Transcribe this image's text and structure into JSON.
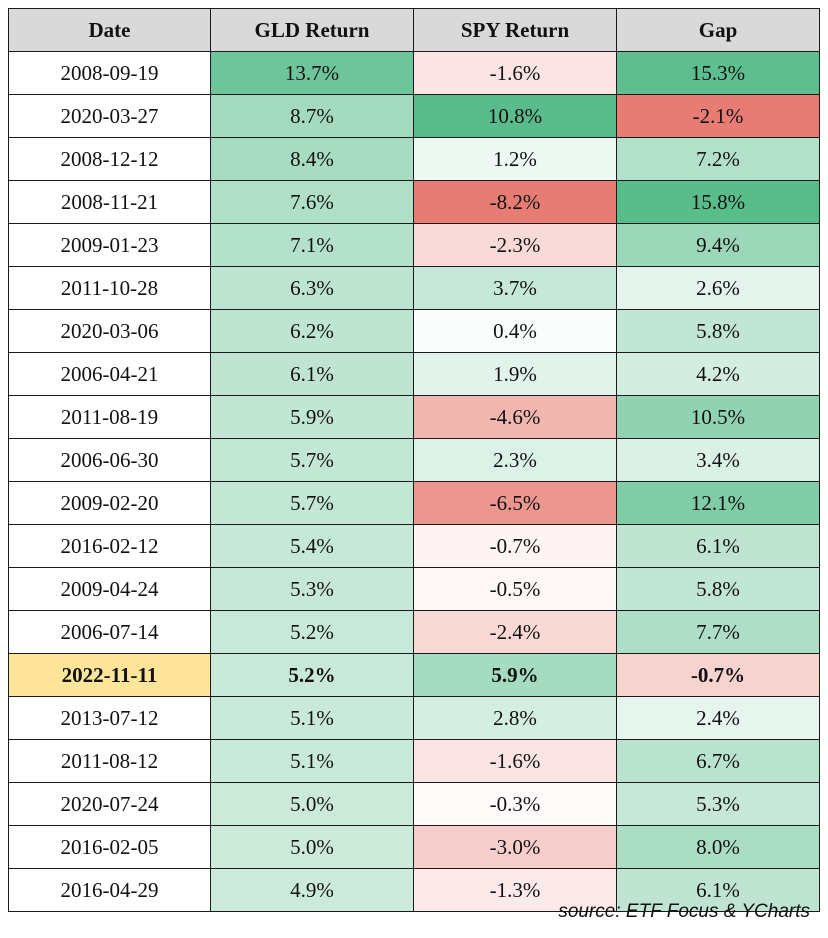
{
  "chart_data": {
    "type": "table",
    "columns": [
      "Date",
      "GLD Return",
      "SPY Return",
      "Gap"
    ],
    "rows": [
      {
        "date": "2008-09-19",
        "gld": "13.7%",
        "spy": "-1.6%",
        "gap": "15.3%"
      },
      {
        "date": "2020-03-27",
        "gld": "8.7%",
        "spy": "10.8%",
        "gap": "-2.1%"
      },
      {
        "date": "2008-12-12",
        "gld": "8.4%",
        "spy": "1.2%",
        "gap": "7.2%"
      },
      {
        "date": "2008-11-21",
        "gld": "7.6%",
        "spy": "-8.2%",
        "gap": "15.8%"
      },
      {
        "date": "2009-01-23",
        "gld": "7.1%",
        "spy": "-2.3%",
        "gap": "9.4%"
      },
      {
        "date": "2011-10-28",
        "gld": "6.3%",
        "spy": "3.7%",
        "gap": "2.6%"
      },
      {
        "date": "2020-03-06",
        "gld": "6.2%",
        "spy": "0.4%",
        "gap": "5.8%"
      },
      {
        "date": "2006-04-21",
        "gld": "6.1%",
        "spy": "1.9%",
        "gap": "4.2%"
      },
      {
        "date": "2011-08-19",
        "gld": "5.9%",
        "spy": "-4.6%",
        "gap": "10.5%"
      },
      {
        "date": "2006-06-30",
        "gld": "5.7%",
        "spy": "2.3%",
        "gap": "3.4%"
      },
      {
        "date": "2009-02-20",
        "gld": "5.7%",
        "spy": "-6.5%",
        "gap": "12.1%"
      },
      {
        "date": "2016-02-12",
        "gld": "5.4%",
        "spy": "-0.7%",
        "gap": "6.1%"
      },
      {
        "date": "2009-04-24",
        "gld": "5.3%",
        "spy": "-0.5%",
        "gap": "5.8%"
      },
      {
        "date": "2006-07-14",
        "gld": "5.2%",
        "spy": "-2.4%",
        "gap": "7.7%"
      },
      {
        "date": "2022-11-11",
        "gld": "5.2%",
        "spy": "5.9%",
        "gap": "-0.7%",
        "highlighted": true
      },
      {
        "date": "2013-07-12",
        "gld": "5.1%",
        "spy": "2.8%",
        "gap": "2.4%"
      },
      {
        "date": "2011-08-12",
        "gld": "5.1%",
        "spy": "-1.6%",
        "gap": "6.7%"
      },
      {
        "date": "2020-07-24",
        "gld": "5.0%",
        "spy": "-0.3%",
        "gap": "5.3%"
      },
      {
        "date": "2016-02-05",
        "gld": "5.0%",
        "spy": "-3.0%",
        "gap": "8.0%"
      },
      {
        "date": "2016-04-29",
        "gld": "4.9%",
        "spy": "-1.3%",
        "gap": "6.1%"
      }
    ],
    "color_scale": {
      "positive": "#57bb8a",
      "negative": "#e67c73",
      "neutral": "#ffffff",
      "highlight_date": "#ffe599",
      "header_background": "#d9d9d9"
    }
  },
  "source": "source: ETF Focus & YCharts"
}
